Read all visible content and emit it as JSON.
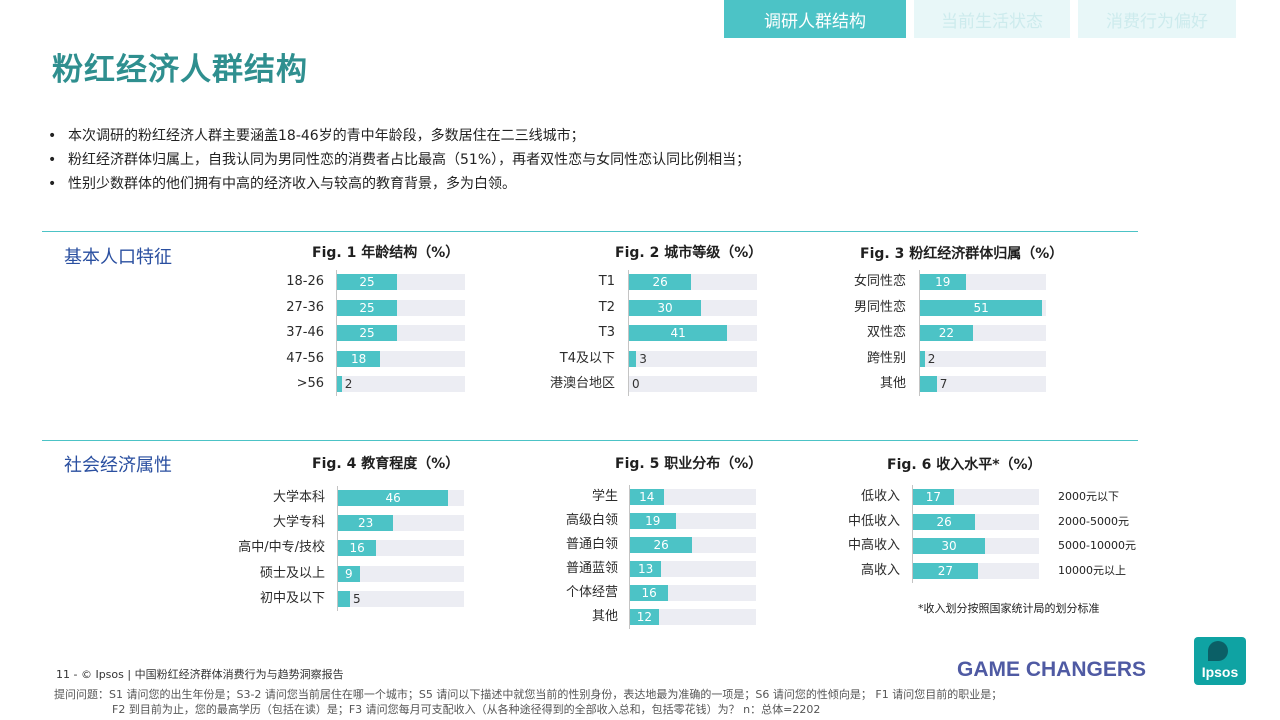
{
  "tabs": [
    {
      "label": "调研人群结构",
      "active": true
    },
    {
      "label": "当前生活状态",
      "active": false
    },
    {
      "label": "消费行为偏好",
      "active": false
    }
  ],
  "title": "粉红经济人群结构",
  "bullets": [
    "本次调研的粉红经济人群主要涵盖18-46岁的青中年龄段，多数居住在二三线城市；",
    "粉红经济群体归属上，自我认同为男同性恋的消费者占比最高（51%），再者双性恋与女同性恋认同比例相当；",
    "性别少数群体的他们拥有中高的经济收入与较高的教育背景，多为白领。"
  ],
  "sections": {
    "basic": "基本人口特征",
    "socio": "社会经济属性"
  },
  "colors": {
    "accent": "#4cc3c6",
    "track": "#ecedf3",
    "title": "#2f8f8f",
    "section": "#2a4fa0"
  },
  "chart_data": [
    {
      "type": "bar",
      "title": "Fig. 1  年龄结构（%）",
      "categories": [
        "18-26",
        "27-36",
        "37-46",
        "47-56",
        ">56"
      ],
      "values": [
        25,
        25,
        25,
        18,
        2
      ],
      "ylim": [
        0,
        100
      ]
    },
    {
      "type": "bar",
      "title": "Fig. 2 城市等级（%）",
      "categories": [
        "T1",
        "T2",
        "T3",
        "T4及以下",
        "港澳台地区"
      ],
      "values": [
        26,
        30,
        41,
        3,
        0
      ],
      "ylim": [
        0,
        100
      ]
    },
    {
      "type": "bar",
      "title": "Fig. 3 粉红经济群体归属（%）",
      "categories": [
        "女同性恋",
        "男同性恋",
        "双性恋",
        "跨性别",
        "其他"
      ],
      "values": [
        19,
        51,
        22,
        2,
        7
      ],
      "ylim": [
        0,
        100
      ]
    },
    {
      "type": "bar",
      "title": "Fig. 4  教育程度（%）",
      "categories": [
        "大学本科",
        "大学专科",
        "高中/中专/技校",
        "硕士及以上",
        "初中及以下"
      ],
      "values": [
        46,
        23,
        16,
        9,
        5
      ],
      "ylim": [
        0,
        100
      ]
    },
    {
      "type": "bar",
      "title": "Fig. 5  职业分布（%）",
      "categories": [
        "学生",
        "高级白领",
        "普通白领",
        "普通蓝领",
        "个体经营",
        "其他"
      ],
      "values": [
        14,
        19,
        26,
        13,
        16,
        12
      ],
      "ylim": [
        0,
        100
      ]
    },
    {
      "type": "bar",
      "title": "Fig. 6  收入水平*（%）",
      "categories": [
        "低收入",
        "中低收入",
        "中高收入",
        "高收入"
      ],
      "values": [
        17,
        26,
        30,
        27
      ],
      "notes": [
        "2000元以下",
        "2000-5000元",
        "5000-10000元",
        "10000元以上"
      ],
      "footnote": "*收入划分按照国家统计局的划分标准",
      "ylim": [
        0,
        100
      ]
    }
  ],
  "footer": {
    "page": "11  -  © Ipsos  |  中国粉红经济群体消费行为与趋势洞察报告",
    "questions_line1": "提问问题：S1 请问您的出生年份是；S3-2 请问您当前居住在哪一个城市；S5 请问以下描述中就您当前的性别身份，表达地最为准确的一项是；S6 请问您的性倾向是；  F1 请问您目前的职业是；",
    "questions_line2": "F2 到目前为止，您的最高学历（包括在读）是；F3 请问您每月可支配收入（从各种途径得到的全部收入总和，包括零花钱）为？  n：总体=2202",
    "brand": "GAME CHANGERS",
    "logo": "Ipsos"
  }
}
